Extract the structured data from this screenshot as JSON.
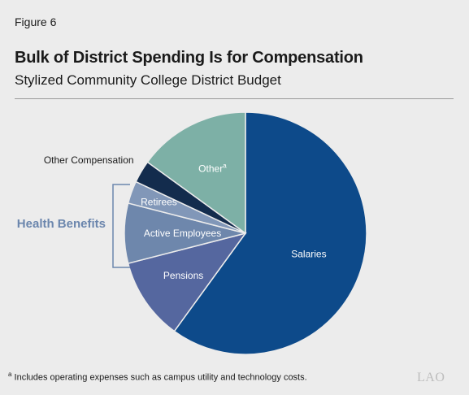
{
  "figure_label": "Figure 6",
  "footnote": {
    "marker": "a",
    "text": "Includes operating expenses such as campus utility and technology costs."
  },
  "logo_text": "LAO",
  "chart_data": {
    "type": "pie",
    "title": "Bulk of District Spending Is for Compensation",
    "subtitle": "Stylized Community College District Budget",
    "units": "percent of budget",
    "start": "12 o'clock, clockwise",
    "slices": [
      {
        "label": "Salaries",
        "value": 60,
        "color": "#0d4a8a"
      },
      {
        "label": "Pensions",
        "value": 11,
        "color": "#55679f"
      },
      {
        "label": "Active Employees",
        "value": 8,
        "color": "#6e87ac"
      },
      {
        "label": "Retirees",
        "value": 3,
        "color": "#8197b8"
      },
      {
        "label": "Other Compensation",
        "value": 3,
        "color": "#132c4d"
      },
      {
        "label": "Other",
        "value": 15,
        "color": "#7db0a6",
        "footnote_marker": "a"
      }
    ],
    "group": {
      "label": "Health Benefits",
      "members": [
        "Active Employees",
        "Retirees"
      ],
      "color": "#6b86ad"
    }
  }
}
